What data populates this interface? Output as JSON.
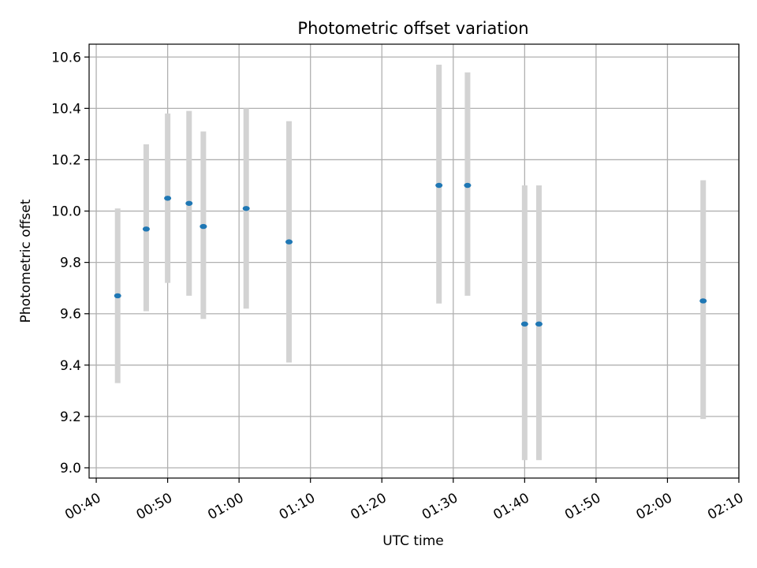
{
  "chart_data": {
    "type": "scatter",
    "title": "Photometric offset variation",
    "xlabel": "UTC time",
    "ylabel": "Photometric offset",
    "x_tick_labels": [
      "00:40",
      "00:50",
      "01:00",
      "01:10",
      "01:20",
      "01:30",
      "01:40",
      "01:50",
      "02:00",
      "02:10"
    ],
    "x_ticks": [
      "00:40",
      "00:50",
      "01:00",
      "01:10",
      "01:20",
      "01:30",
      "01:40",
      "01:50",
      "02:00",
      "02:10"
    ],
    "y_ticks": [
      9.0,
      9.2,
      9.4,
      9.6,
      9.8,
      10.0,
      10.2,
      10.4,
      10.6
    ],
    "y_tick_labels": [
      "9.0",
      "9.2",
      "9.4",
      "9.6",
      "9.8",
      "10.0",
      "10.2",
      "10.4",
      "10.6"
    ],
    "xlim": [
      "00:39",
      "02:10"
    ],
    "ylim": [
      8.96,
      10.65
    ],
    "grid": true,
    "points": [
      {
        "x": "00:43",
        "y": 9.67,
        "low": 9.33,
        "high": 10.01
      },
      {
        "x": "00:47",
        "y": 9.93,
        "low": 9.61,
        "high": 10.26
      },
      {
        "x": "00:50",
        "y": 10.05,
        "low": 9.72,
        "high": 10.38
      },
      {
        "x": "00:53",
        "y": 10.03,
        "low": 9.67,
        "high": 10.39
      },
      {
        "x": "00:55",
        "y": 9.94,
        "low": 9.58,
        "high": 10.31
      },
      {
        "x": "01:01",
        "y": 10.01,
        "low": 9.62,
        "high": 10.4
      },
      {
        "x": "01:07",
        "y": 9.88,
        "low": 9.41,
        "high": 10.35
      },
      {
        "x": "01:28",
        "y": 10.1,
        "low": 9.64,
        "high": 10.57
      },
      {
        "x": "01:32",
        "y": 10.1,
        "low": 9.67,
        "high": 10.54
      },
      {
        "x": "01:40",
        "y": 9.56,
        "low": 9.03,
        "high": 10.1
      },
      {
        "x": "01:42",
        "y": 9.56,
        "low": 9.03,
        "high": 10.1
      },
      {
        "x": "02:05",
        "y": 9.65,
        "low": 9.19,
        "high": 10.12
      }
    ],
    "colors": {
      "marker": "#1f77b4",
      "errorbar": "#d3d3d3",
      "grid": "#b0b0b0"
    }
  }
}
